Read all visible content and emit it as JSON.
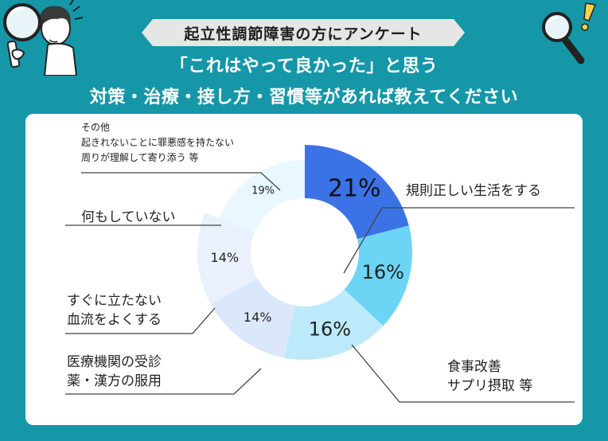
{
  "banner": "起立性調節障害の方にアンケート",
  "headline_1": "「これはやって良かった」と思う",
  "headline_2": "対策・治療・接し方・習慣等があれば教えてください",
  "colors": {
    "background": "#1597a8",
    "card": "#ffffff",
    "banner": "#e6e6e6",
    "leader_line": "#444444"
  },
  "icons": [
    "person-with-magnifier-icon",
    "magnifier-icon",
    "exclamation-icon"
  ],
  "chart_data": {
    "type": "donut",
    "start_angle_deg": 0,
    "direction": "clockwise",
    "slices": [
      {
        "value": 21,
        "label": "21%",
        "lines": [
          "規則正しい生活をする"
        ],
        "color": "#3b73e6",
        "label_size": "large"
      },
      {
        "value": 16,
        "label": "16%",
        "lines": [
          "食事改善",
          "サプリ摂取 等"
        ],
        "color": "#6cd4f4",
        "label_size": "medium"
      },
      {
        "value": 16,
        "label": "16%",
        "lines": [
          "医療機関の受診",
          "薬・漢方の服用"
        ],
        "color": "#bdeafb",
        "label_size": "medium"
      },
      {
        "value": 14,
        "label": "14%",
        "lines": [
          "すぐに立たない",
          "血流をよくする"
        ],
        "color": "#dbe8fb",
        "label_size": "small"
      },
      {
        "value": 14,
        "label": "14%",
        "lines": [
          "何もしていない"
        ],
        "color": "#eaf1fd",
        "label_size": "small"
      },
      {
        "value": 19,
        "label": "19%",
        "lines": [
          "その他",
          "起きれないことに罪悪感を持たない",
          "周りが理解して寄り添う 等"
        ],
        "color": "#e9f8fe",
        "label_size": "tiny"
      }
    ]
  }
}
